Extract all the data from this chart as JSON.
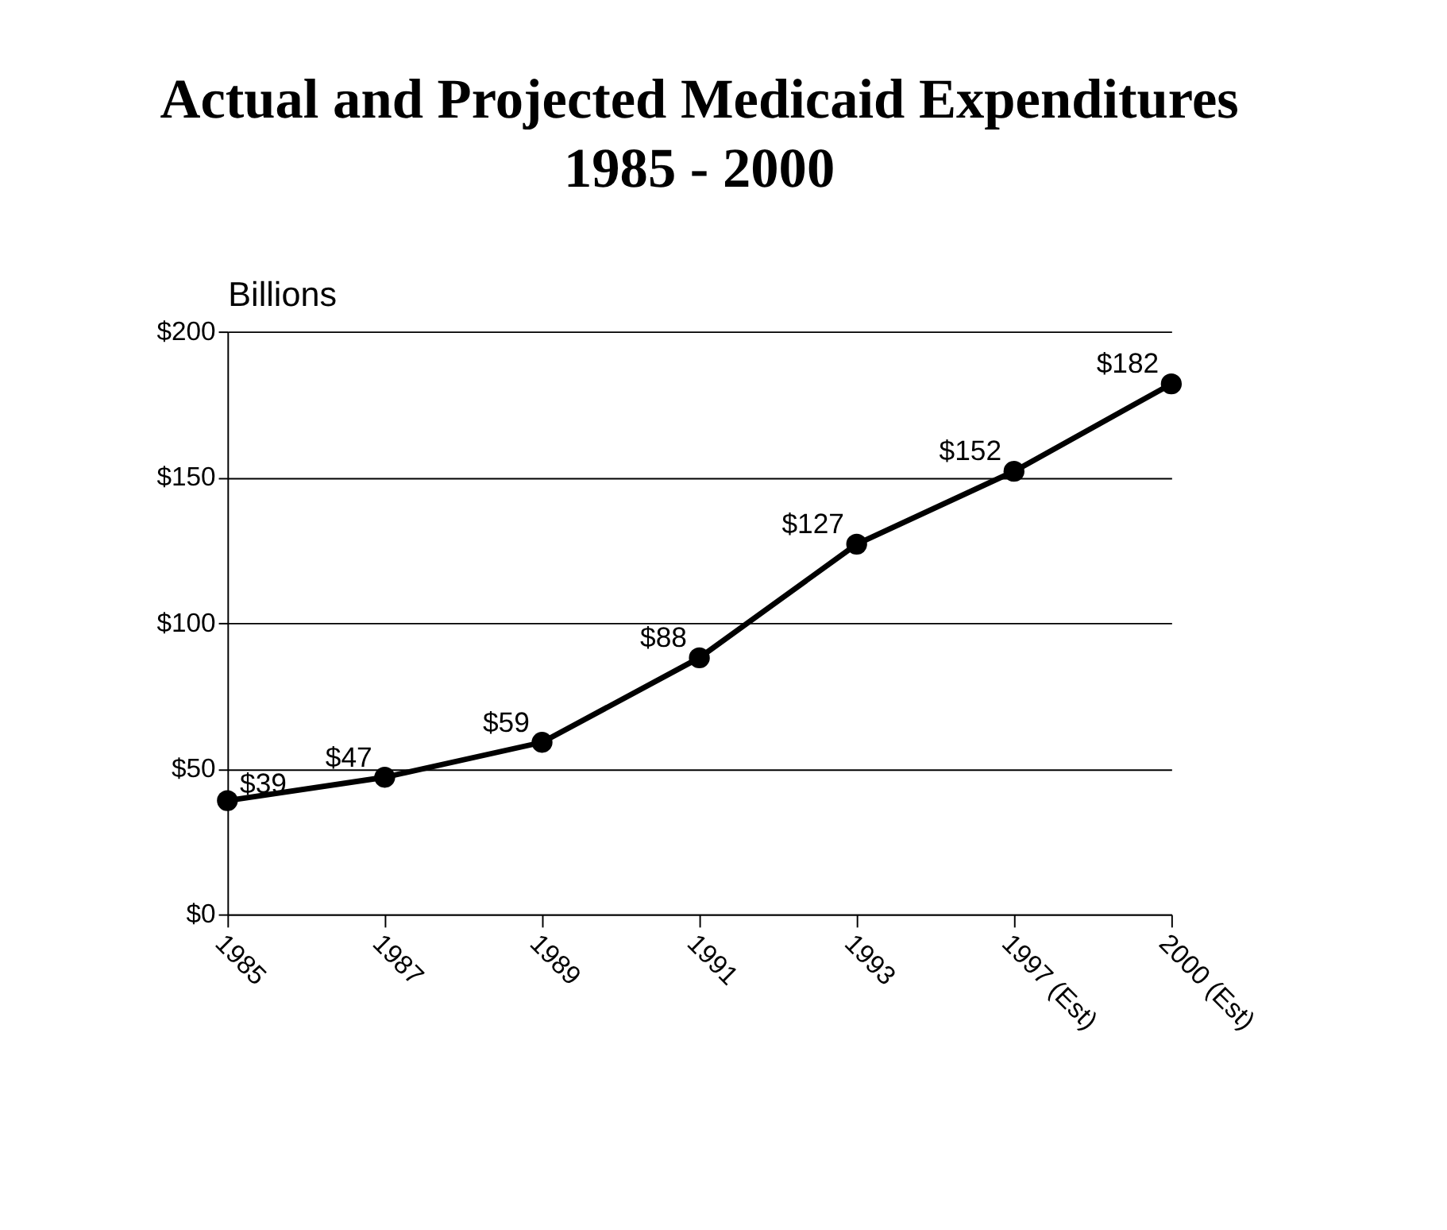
{
  "chart_data": {
    "type": "line",
    "title": "Actual and Projected Medicaid Expenditures\n1985 - 2000",
    "ylabel": "Billions",
    "categories": [
      "1985",
      "1987",
      "1989",
      "1991",
      "1993",
      "1997 (Est)",
      "2000 (Est)"
    ],
    "series": [
      {
        "color": "#000000",
        "values": [
          39,
          47,
          59,
          88,
          127,
          152,
          182
        ],
        "value_labels": [
          "$39",
          "$47",
          "$59",
          "$88",
          "$127",
          "$152",
          "$182"
        ]
      }
    ],
    "ylim": [
      0,
      200
    ],
    "yticks": [
      {
        "value": 0,
        "label": "$0"
      },
      {
        "value": 50,
        "label": "$50"
      },
      {
        "value": 100,
        "label": "$100"
      },
      {
        "value": 150,
        "label": "$150"
      },
      {
        "value": 200,
        "label": "$200"
      }
    ],
    "grid": "y",
    "marker": "circle",
    "line_style": "solid"
  }
}
